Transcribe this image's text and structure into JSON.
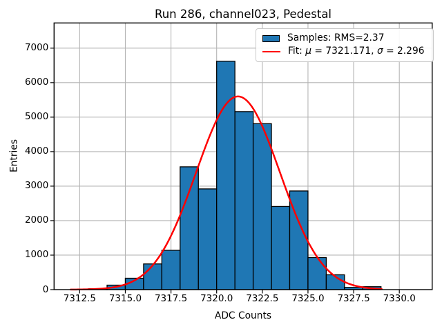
{
  "chart_data": {
    "type": "bar",
    "subtype": "histogram",
    "title": "Run 286, channel023, Pedestal",
    "xlabel": "ADC Counts",
    "ylabel": "Entries",
    "bin_start": 7313,
    "bin_width": 1,
    "categories": [
      "7313-7314",
      "7314-7315",
      "7315-7316",
      "7316-7317",
      "7317-7318",
      "7318-7319",
      "7319-7320",
      "7320-7321",
      "7321-7322",
      "7322-7323",
      "7323-7324",
      "7324-7325",
      "7325-7326",
      "7326-7327",
      "7327-7328",
      "7328-7329"
    ],
    "values": [
      25,
      130,
      330,
      745,
      1140,
      3560,
      2920,
      6620,
      5160,
      4810,
      2410,
      2860,
      930,
      430,
      65,
      85
    ],
    "xlim": [
      7311.1,
      7331.8
    ],
    "ylim": [
      0,
      7730
    ],
    "x_tick_values": [
      7312.5,
      7315.0,
      7317.5,
      7320.0,
      7322.5,
      7325.0,
      7327.5,
      7330.0
    ],
    "x_tick_labels": [
      "7312.5",
      "7315.0",
      "7317.5",
      "7320.0",
      "7322.5",
      "7325.0",
      "7327.5",
      "7330.0"
    ],
    "y_tick_values": [
      0,
      1000,
      2000,
      3000,
      4000,
      5000,
      6000,
      7000
    ],
    "y_tick_labels": [
      "0",
      "1000",
      "2000",
      "3000",
      "4000",
      "5000",
      "6000",
      "7000"
    ],
    "grid": true,
    "legend_position": "upper right",
    "fit": {
      "type": "gaussian",
      "mu": 7321.171,
      "sigma": 2.296,
      "amplitude": 5600,
      "x_range": [
        7312.0,
        7329.05
      ]
    },
    "legend": {
      "samples_label": "Samples: RMS=2.37",
      "fit_label_full": "Fit: μ = 7321.171, σ = 2.296",
      "fit_parts": {
        "prefix": "Fit: ",
        "mu": "μ",
        "mid": " = 7321.171, ",
        "sigma": "σ",
        "suffix": " = 2.296"
      }
    },
    "colors": {
      "bar_fill": "#1f77b4",
      "bar_edge": "#000000",
      "fit_line": "#ff0000",
      "grid": "#b4b4b4",
      "spine": "#000000",
      "background": "#ffffff"
    }
  }
}
